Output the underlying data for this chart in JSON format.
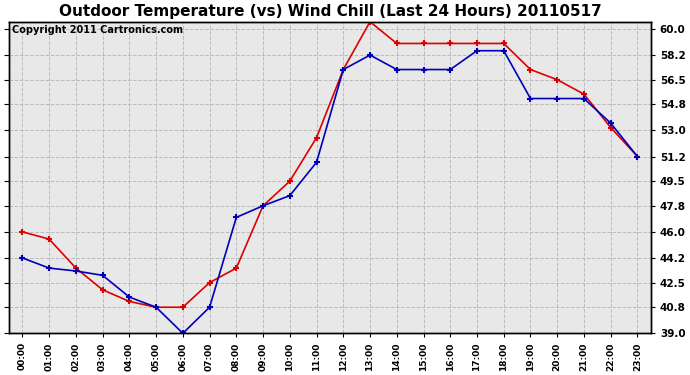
{
  "title": "Outdoor Temperature (vs) Wind Chill (Last 24 Hours) 20110517",
  "copyright": "Copyright 2011 Cartronics.com",
  "x_labels": [
    "00:00",
    "01:00",
    "02:00",
    "03:00",
    "04:00",
    "05:00",
    "06:00",
    "07:00",
    "08:00",
    "09:00",
    "10:00",
    "11:00",
    "12:00",
    "13:00",
    "14:00",
    "15:00",
    "16:00",
    "17:00",
    "18:00",
    "19:00",
    "20:00",
    "21:00",
    "22:00",
    "23:00"
  ],
  "temp_red": [
    46.0,
    45.5,
    43.5,
    42.0,
    41.2,
    40.8,
    40.8,
    42.5,
    43.5,
    47.8,
    49.5,
    52.5,
    57.2,
    60.5,
    59.0,
    59.0,
    59.0,
    59.0,
    59.0,
    57.2,
    56.5,
    55.5,
    53.2,
    51.2
  ],
  "wind_chill_blue": [
    44.2,
    43.5,
    43.3,
    43.0,
    41.5,
    40.8,
    39.0,
    40.8,
    47.0,
    47.8,
    48.5,
    50.8,
    57.2,
    58.2,
    57.2,
    57.2,
    57.2,
    58.5,
    58.5,
    55.2,
    55.2,
    55.2,
    53.5,
    51.2
  ],
  "ylim": [
    39.0,
    60.5
  ],
  "yticks": [
    39.0,
    40.8,
    42.5,
    44.2,
    46.0,
    47.8,
    49.5,
    51.2,
    53.0,
    54.8,
    56.5,
    58.2,
    60.0
  ],
  "red_color": "#dd0000",
  "blue_color": "#0000bb",
  "grid_color": "#bbbbbb",
  "fig_bg_color": "#ffffff",
  "plot_bg_color": "#e8e8e8",
  "title_fontsize": 11,
  "copyright_fontsize": 7
}
